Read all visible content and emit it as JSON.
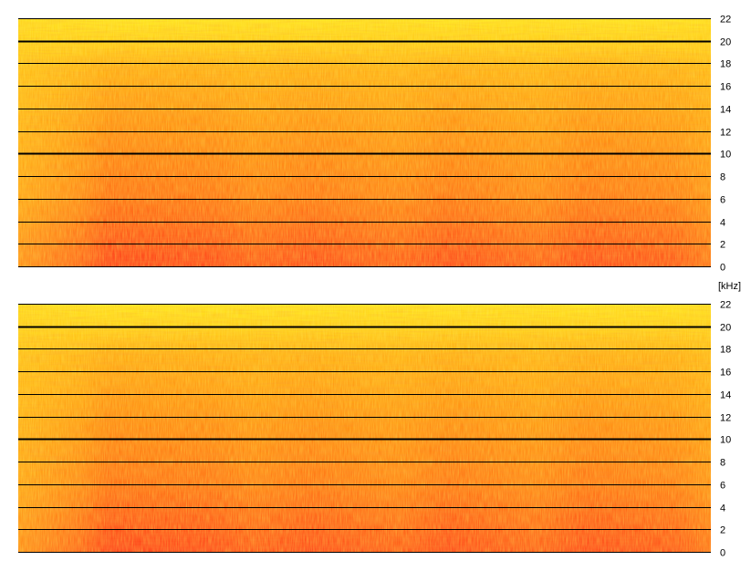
{
  "chart_data": {
    "type": "heatmap",
    "title": "",
    "xlabel": "",
    "ylabel": "",
    "unit_label": "[kHz]",
    "ylim": [
      0,
      22
    ],
    "y_ticks": [
      22,
      20,
      18,
      16,
      14,
      12,
      10,
      8,
      6,
      4,
      2,
      0
    ],
    "emphasized_gridlines": [
      20,
      10
    ],
    "grid": true,
    "colors": {
      "low": "#ffe21a",
      "mid": "#ff9a10",
      "high": "#ff3a1a",
      "gridline": "#000000"
    },
    "channels": [
      {
        "name": "",
        "tick_labels": [
          "22",
          "20",
          "18",
          "16",
          "14",
          "12",
          "10",
          "8",
          "6",
          "4",
          "2",
          "0"
        ]
      },
      {
        "name": "",
        "tick_labels": [
          "22",
          "20",
          "18",
          "16",
          "14",
          "12",
          "10",
          "8",
          "6",
          "4",
          "2",
          "0"
        ]
      }
    ]
  }
}
